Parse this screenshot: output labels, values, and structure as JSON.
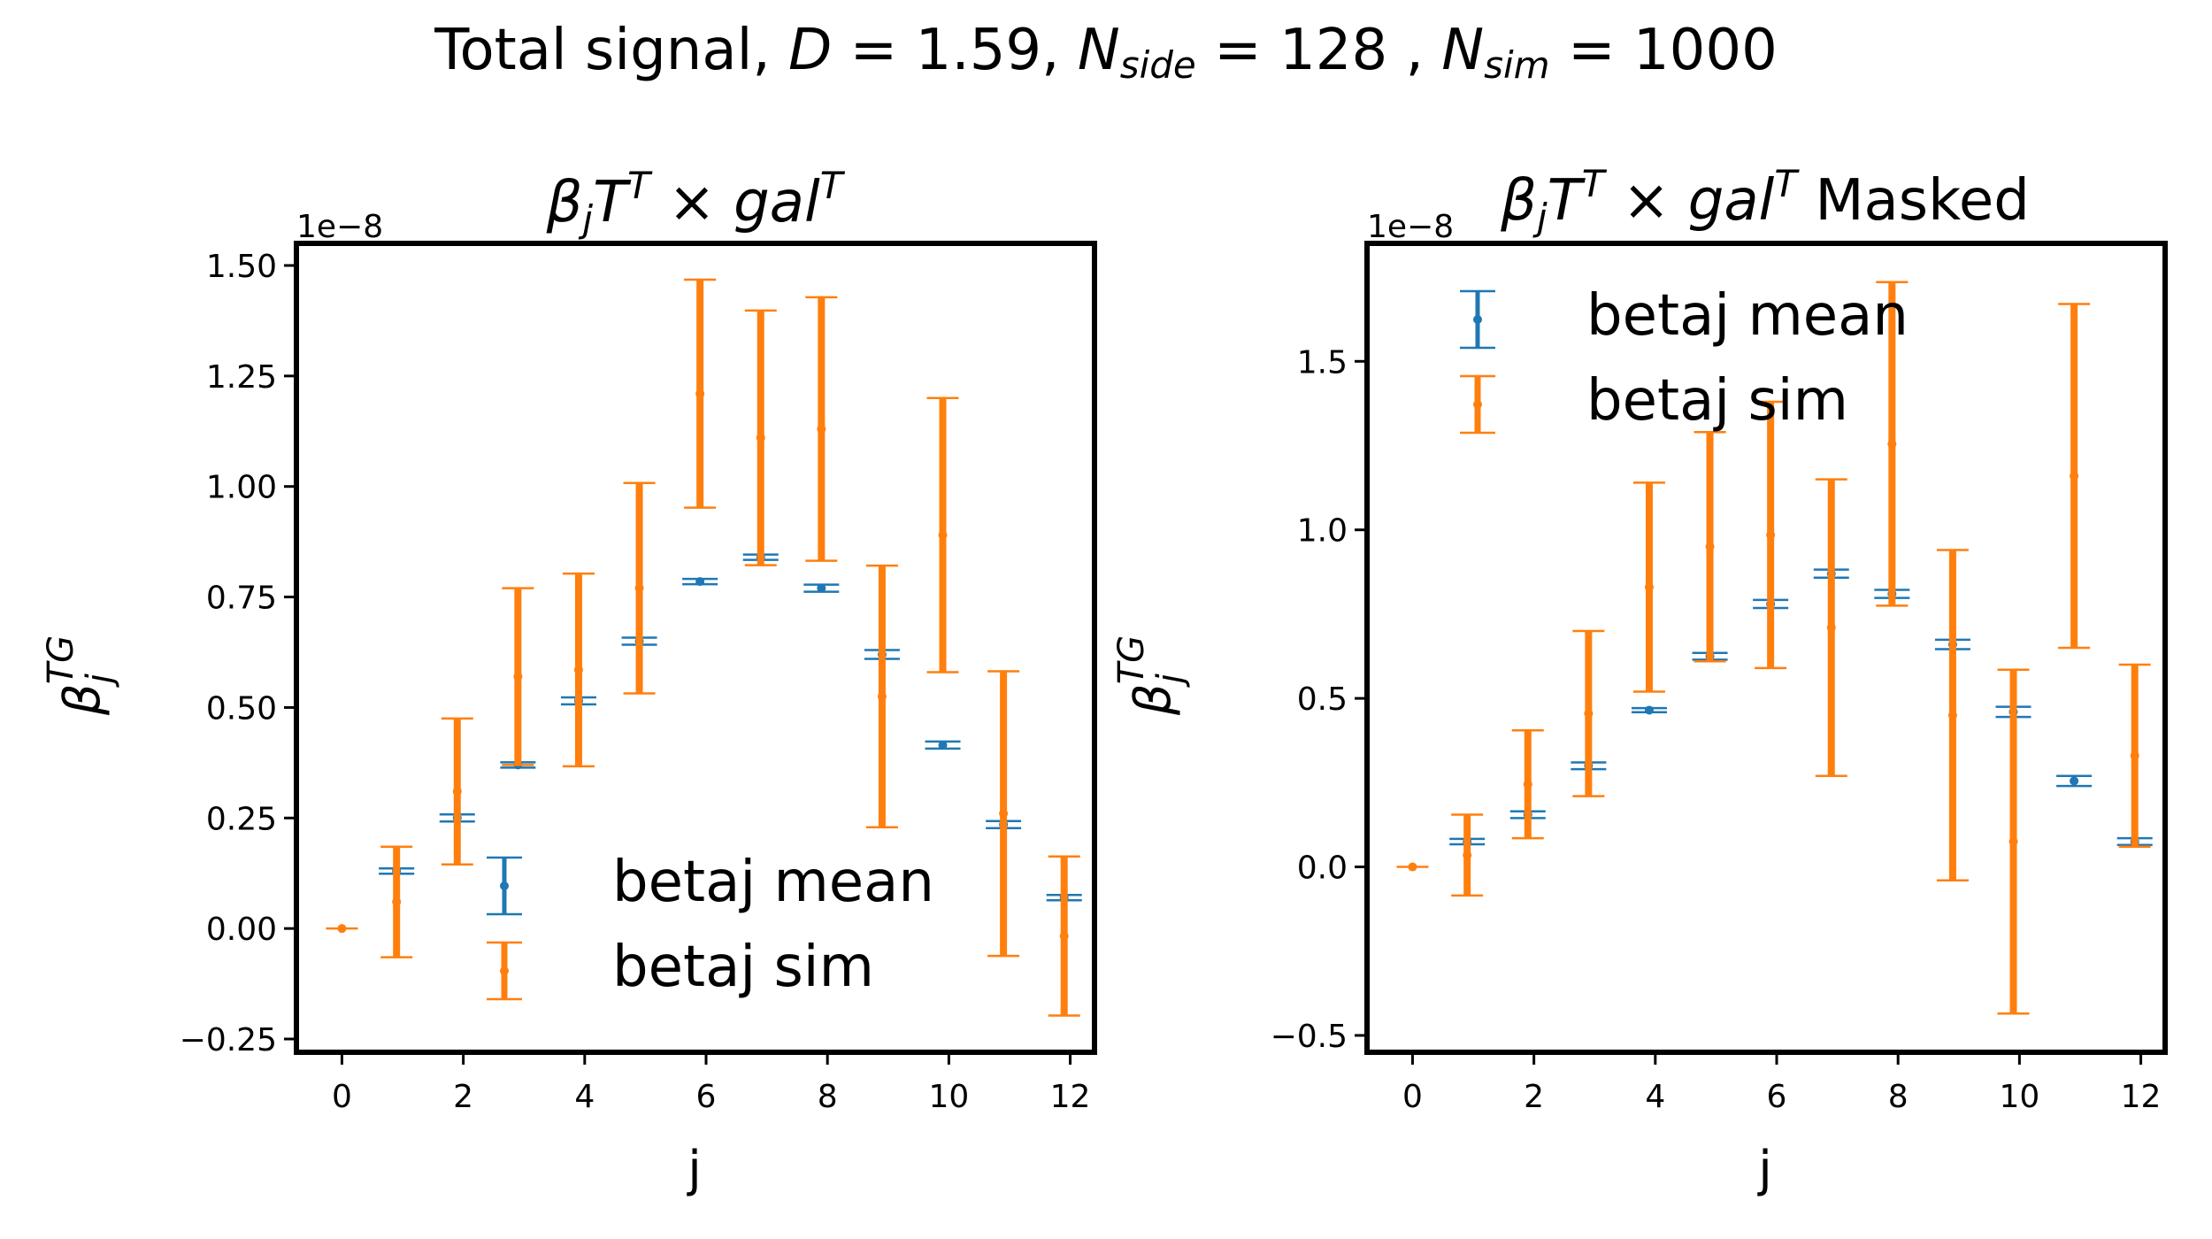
{
  "figure": {
    "suptitle": "Total signal, D = 1.59,  N_side = 128 ,  N_sim = 1000"
  },
  "colors": {
    "mean": "#1f77b4",
    "sim": "#ff7f0e"
  },
  "chart_data": [
    {
      "type": "scatter",
      "title": "β_j T^T × gal^T",
      "xlabel": "j",
      "ylabel": "β_j^TG",
      "offset_text": "1e−8",
      "x_ticks": [
        "0",
        "2",
        "4",
        "6",
        "8",
        "10",
        "12"
      ],
      "y_ticks": [
        "−0.25",
        "0.00",
        "0.25",
        "0.50",
        "0.75",
        "1.00",
        "1.25",
        "1.50"
      ],
      "xlim": [
        -0.75,
        12.4
      ],
      "ylim": [
        -0.28,
        1.55
      ],
      "legend_position": "lower-center",
      "series": [
        {
          "name": "betaj mean",
          "color": "mean",
          "points": [
            {
              "x": 0.9,
              "y": 0.13,
              "err": 0.006
            },
            {
              "x": 1.9,
              "y": 0.25,
              "err": 0.008
            },
            {
              "x": 2.9,
              "y": 0.37,
              "err": 0.006
            },
            {
              "x": 3.9,
              "y": 0.515,
              "err": 0.008
            },
            {
              "x": 4.9,
              "y": 0.65,
              "err": 0.008
            },
            {
              "x": 5.9,
              "y": 0.785,
              "err": 0.006
            },
            {
              "x": 6.9,
              "y": 0.84,
              "err": 0.006
            },
            {
              "x": 7.9,
              "y": 0.77,
              "err": 0.008
            },
            {
              "x": 8.9,
              "y": 0.62,
              "err": 0.01
            },
            {
              "x": 9.9,
              "y": 0.415,
              "err": 0.008
            },
            {
              "x": 10.9,
              "y": 0.235,
              "err": 0.008
            },
            {
              "x": 11.9,
              "y": 0.07,
              "err": 0.006
            }
          ]
        },
        {
          "name": "betaj sim",
          "color": "sim",
          "points": [
            {
              "x": 0,
              "y": 0.0,
              "err": 0.0
            },
            {
              "x": 0.9,
              "y": 0.06,
              "err": 0.125
            },
            {
              "x": 1.9,
              "y": 0.31,
              "err": 0.165
            },
            {
              "x": 2.9,
              "y": 0.57,
              "err": 0.2
            },
            {
              "x": 3.9,
              "y": 0.585,
              "err": 0.218
            },
            {
              "x": 4.9,
              "y": 0.77,
              "err": 0.238
            },
            {
              "x": 5.9,
              "y": 1.21,
              "err": 0.258
            },
            {
              "x": 6.9,
              "y": 1.11,
              "err": 0.288
            },
            {
              "x": 7.9,
              "y": 1.13,
              "err": 0.298
            },
            {
              "x": 8.9,
              "y": 0.525,
              "err": 0.296
            },
            {
              "x": 9.9,
              "y": 0.89,
              "err": 0.31
            },
            {
              "x": 10.9,
              "y": 0.26,
              "err": 0.322
            },
            {
              "x": 11.9,
              "y": -0.017,
              "err": 0.18
            }
          ]
        }
      ]
    },
    {
      "type": "scatter",
      "title": "β_j T^T × gal^T Masked",
      "xlabel": "j",
      "ylabel": "β_j^TG",
      "offset_text": "1e−8",
      "x_ticks": [
        "0",
        "2",
        "4",
        "6",
        "8",
        "10",
        "12"
      ],
      "y_ticks": [
        "−0.5",
        "0.0",
        "0.5",
        "1.0",
        "1.5"
      ],
      "xlim": [
        -0.75,
        12.4
      ],
      "ylim": [
        -0.55,
        1.85
      ],
      "legend_position": "upper-left",
      "series": [
        {
          "name": "betaj mean",
          "color": "mean",
          "points": [
            {
              "x": 0.9,
              "y": 0.075,
              "err": 0.008
            },
            {
              "x": 1.9,
              "y": 0.155,
              "err": 0.01
            },
            {
              "x": 2.9,
              "y": 0.3,
              "err": 0.01
            },
            {
              "x": 3.9,
              "y": 0.465,
              "err": 0.006
            },
            {
              "x": 4.9,
              "y": 0.625,
              "err": 0.01
            },
            {
              "x": 5.9,
              "y": 0.78,
              "err": 0.012
            },
            {
              "x": 6.9,
              "y": 0.87,
              "err": 0.012
            },
            {
              "x": 7.9,
              "y": 0.81,
              "err": 0.012
            },
            {
              "x": 8.9,
              "y": 0.66,
              "err": 0.014
            },
            {
              "x": 9.9,
              "y": 0.46,
              "err": 0.015
            },
            {
              "x": 10.9,
              "y": 0.255,
              "err": 0.015
            },
            {
              "x": 11.9,
              "y": 0.075,
              "err": 0.01
            }
          ]
        },
        {
          "name": "betaj sim",
          "color": "sim",
          "points": [
            {
              "x": 0,
              "y": 0.0,
              "err": 0.0
            },
            {
              "x": 0.9,
              "y": 0.035,
              "err": 0.12
            },
            {
              "x": 1.9,
              "y": 0.245,
              "err": 0.16
            },
            {
              "x": 2.9,
              "y": 0.455,
              "err": 0.245
            },
            {
              "x": 3.9,
              "y": 0.83,
              "err": 0.31
            },
            {
              "x": 4.9,
              "y": 0.95,
              "err": 0.34
            },
            {
              "x": 5.9,
              "y": 0.985,
              "err": 0.395
            },
            {
              "x": 6.9,
              "y": 0.71,
              "err": 0.44
            },
            {
              "x": 7.9,
              "y": 1.255,
              "err": 0.48
            },
            {
              "x": 8.9,
              "y": 0.45,
              "err": 0.49
            },
            {
              "x": 9.9,
              "y": 0.075,
              "err": 0.51
            },
            {
              "x": 10.9,
              "y": 1.16,
              "err": 0.51
            },
            {
              "x": 11.9,
              "y": 0.33,
              "err": 0.27
            }
          ]
        }
      ]
    }
  ]
}
